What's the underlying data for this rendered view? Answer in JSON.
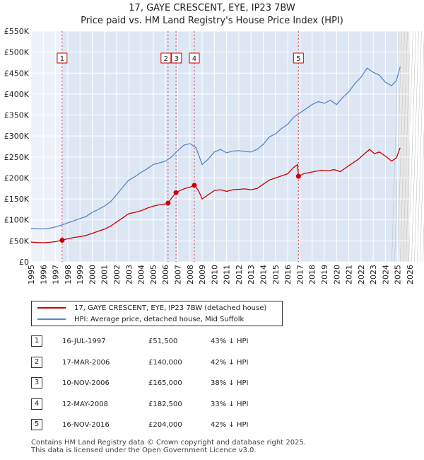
{
  "title_line1": "17, GAYE CRESCENT, EYE, IP23 7BW",
  "title_line2": "Price paid vs. HM Land Registry's House Price Index (HPI)",
  "chart_data": {
    "type": "line",
    "xlim": [
      1995,
      2026
    ],
    "ylim": [
      0,
      550000
    ],
    "x_ticks": [
      1995,
      1996,
      1997,
      1998,
      1999,
      2000,
      2001,
      2002,
      2003,
      2004,
      2005,
      2006,
      2007,
      2008,
      2009,
      2010,
      2011,
      2012,
      2013,
      2014,
      2015,
      2016,
      2017,
      2018,
      2019,
      2020,
      2021,
      2022,
      2023,
      2024,
      2025,
      2026
    ],
    "y_ticks": [
      {
        "value": 0,
        "label": "£0"
      },
      {
        "value": 50000,
        "label": "£50K"
      },
      {
        "value": 100000,
        "label": "£100K"
      },
      {
        "value": 150000,
        "label": "£150K"
      },
      {
        "value": 200000,
        "label": "£200K"
      },
      {
        "value": 250000,
        "label": "£250K"
      },
      {
        "value": 300000,
        "label": "£300K"
      },
      {
        "value": 350000,
        "label": "£350K"
      },
      {
        "value": 400000,
        "label": "£400K"
      },
      {
        "value": 450000,
        "label": "£450K"
      },
      {
        "value": 500000,
        "label": "£500K"
      },
      {
        "value": 550000,
        "label": "£550K"
      }
    ],
    "grid": true,
    "forecast_start": 2025.1,
    "series": [
      {
        "name": "17, GAYE CRESCENT, EYE, IP23 7BW (detached house)",
        "color": "#cc0000",
        "points": [
          [
            1995.0,
            47000
          ],
          [
            1995.5,
            46000
          ],
          [
            1996.0,
            45500
          ],
          [
            1996.5,
            46500
          ],
          [
            1997.0,
            48000
          ],
          [
            1997.54,
            51500
          ],
          [
            1998.0,
            55000
          ],
          [
            1998.5,
            58000
          ],
          [
            1999.0,
            60000
          ],
          [
            1999.5,
            63000
          ],
          [
            2000.0,
            68000
          ],
          [
            2000.5,
            73000
          ],
          [
            2001.0,
            78000
          ],
          [
            2001.5,
            85000
          ],
          [
            2002.0,
            95000
          ],
          [
            2002.5,
            105000
          ],
          [
            2003.0,
            115000
          ],
          [
            2003.5,
            118000
          ],
          [
            2004.0,
            122000
          ],
          [
            2004.5,
            128000
          ],
          [
            2005.0,
            133000
          ],
          [
            2005.5,
            136000
          ],
          [
            2006.0,
            138000
          ],
          [
            2006.21,
            140000
          ],
          [
            2006.5,
            152000
          ],
          [
            2006.86,
            165000
          ],
          [
            2007.2,
            170000
          ],
          [
            2007.6,
            175000
          ],
          [
            2008.0,
            178000
          ],
          [
            2008.36,
            182500
          ],
          [
            2008.7,
            170000
          ],
          [
            2009.0,
            150000
          ],
          [
            2009.5,
            160000
          ],
          [
            2010.0,
            170000
          ],
          [
            2010.5,
            172000
          ],
          [
            2011.0,
            168000
          ],
          [
            2011.5,
            172000
          ],
          [
            2012.0,
            173000
          ],
          [
            2012.5,
            174000
          ],
          [
            2013.0,
            172000
          ],
          [
            2013.5,
            175000
          ],
          [
            2014.0,
            185000
          ],
          [
            2014.5,
            195000
          ],
          [
            2015.0,
            200000
          ],
          [
            2015.5,
            205000
          ],
          [
            2016.0,
            210000
          ],
          [
            2016.5,
            225000
          ],
          [
            2016.8,
            232000
          ],
          [
            2016.88,
            204000
          ],
          [
            2017.3,
            210000
          ],
          [
            2017.8,
            213000
          ],
          [
            2018.3,
            216000
          ],
          [
            2018.8,
            218000
          ],
          [
            2019.3,
            217000
          ],
          [
            2019.8,
            220000
          ],
          [
            2020.3,
            215000
          ],
          [
            2020.8,
            225000
          ],
          [
            2021.3,
            235000
          ],
          [
            2021.8,
            245000
          ],
          [
            2022.3,
            258000
          ],
          [
            2022.7,
            268000
          ],
          [
            2023.1,
            258000
          ],
          [
            2023.5,
            262000
          ],
          [
            2024.0,
            252000
          ],
          [
            2024.5,
            240000
          ],
          [
            2024.9,
            248000
          ],
          [
            2025.2,
            272000
          ]
        ]
      },
      {
        "name": "HPI: Average price, detached house, Mid Suffolk",
        "color": "#5588cc",
        "points": [
          [
            1995.0,
            80000
          ],
          [
            1995.5,
            79000
          ],
          [
            1996.0,
            78500
          ],
          [
            1996.5,
            80000
          ],
          [
            1997.0,
            83000
          ],
          [
            1997.54,
            88000
          ],
          [
            1998.0,
            93000
          ],
          [
            1998.5,
            98000
          ],
          [
            1999.0,
            103000
          ],
          [
            1999.5,
            108000
          ],
          [
            2000.0,
            118000
          ],
          [
            2000.5,
            125000
          ],
          [
            2001.0,
            133000
          ],
          [
            2001.5,
            143000
          ],
          [
            2002.0,
            160000
          ],
          [
            2002.5,
            178000
          ],
          [
            2003.0,
            195000
          ],
          [
            2003.5,
            203000
          ],
          [
            2004.0,
            213000
          ],
          [
            2004.5,
            222000
          ],
          [
            2005.0,
            232000
          ],
          [
            2005.5,
            236000
          ],
          [
            2006.0,
            240000
          ],
          [
            2006.5,
            250000
          ],
          [
            2007.0,
            265000
          ],
          [
            2007.5,
            278000
          ],
          [
            2008.0,
            282000
          ],
          [
            2008.5,
            272000
          ],
          [
            2009.0,
            232000
          ],
          [
            2009.5,
            245000
          ],
          [
            2010.0,
            262000
          ],
          [
            2010.5,
            268000
          ],
          [
            2011.0,
            260000
          ],
          [
            2011.5,
            264000
          ],
          [
            2012.0,
            265000
          ],
          [
            2012.5,
            263000
          ],
          [
            2013.0,
            262000
          ],
          [
            2013.5,
            268000
          ],
          [
            2014.0,
            280000
          ],
          [
            2014.5,
            298000
          ],
          [
            2015.0,
            305000
          ],
          [
            2015.5,
            318000
          ],
          [
            2016.0,
            328000
          ],
          [
            2016.5,
            345000
          ],
          [
            2017.0,
            355000
          ],
          [
            2017.5,
            365000
          ],
          [
            2018.0,
            375000
          ],
          [
            2018.5,
            382000
          ],
          [
            2019.0,
            378000
          ],
          [
            2019.5,
            385000
          ],
          [
            2020.0,
            375000
          ],
          [
            2020.5,
            392000
          ],
          [
            2021.0,
            405000
          ],
          [
            2021.5,
            425000
          ],
          [
            2022.0,
            440000
          ],
          [
            2022.5,
            462000
          ],
          [
            2023.0,
            452000
          ],
          [
            2023.5,
            445000
          ],
          [
            2024.0,
            428000
          ],
          [
            2024.5,
            420000
          ],
          [
            2024.9,
            432000
          ],
          [
            2025.2,
            465000
          ]
        ]
      }
    ],
    "transactions": [
      {
        "num": "1",
        "date": "16-JUL-1997",
        "x": 1997.54,
        "price": 51500,
        "price_label": "£51,500",
        "hpi": "43% ↓ HPI"
      },
      {
        "num": "2",
        "date": "17-MAR-2006",
        "x": 2006.21,
        "price": 140000,
        "price_label": "£140,000",
        "hpi": "42% ↓ HPI"
      },
      {
        "num": "3",
        "date": "10-NOV-2006",
        "x": 2006.86,
        "price": 165000,
        "price_label": "£165,000",
        "hpi": "38% ↓ HPI"
      },
      {
        "num": "4",
        "date": "12-MAY-2008",
        "x": 2008.36,
        "price": 182500,
        "price_label": "£182,500",
        "hpi": "33% ↓ HPI"
      },
      {
        "num": "5",
        "date": "16-NOV-2016",
        "x": 2016.88,
        "price": 204000,
        "price_label": "£204,000",
        "hpi": "42% ↓ HPI"
      }
    ]
  },
  "legend": {
    "property": "17, GAYE CRESCENT, EYE, IP23 7BW (detached house)",
    "hpi": "HPI: Average price, detached house, Mid Suffolk",
    "property_color": "#cc0000",
    "hpi_color": "#5588cc"
  },
  "footer_line1": "Contains HM Land Registry data © Crown copyright and database right 2025.",
  "footer_line2": "This data is licensed under the Open Government Licence v3.0."
}
